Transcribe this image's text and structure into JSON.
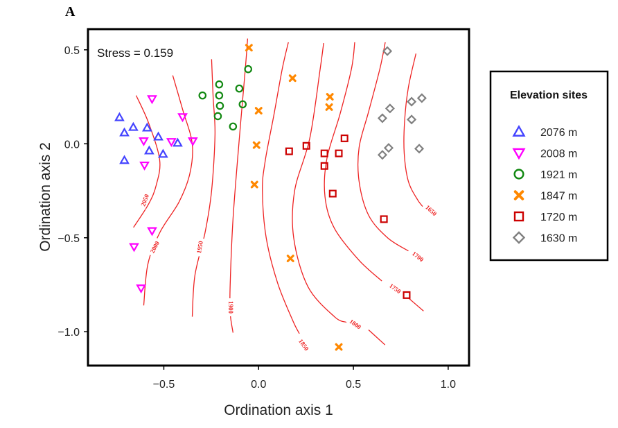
{
  "chart_data": {
    "type": "scatter",
    "panel_label": "A",
    "title": "",
    "annotation": "Stress = 0.159",
    "xlabel": "Ordination axis 1",
    "ylabel": "Ordination axis 2",
    "xlim": [
      -0.9,
      1.11
    ],
    "ylim": [
      -1.18,
      0.61
    ],
    "xticks": [
      -0.5,
      0.0,
      0.5,
      1.0
    ],
    "xtick_labels": [
      "−0.5",
      "0.0",
      "0.5",
      "1.0"
    ],
    "yticks": [
      0.5,
      0.0,
      -0.5,
      -1.0
    ],
    "ytick_labels": [
      "0.5",
      "0.0",
      "−0.5",
      "−1.0"
    ],
    "grid": false,
    "legend": {
      "title": "Elevation sites",
      "placement": "right"
    },
    "series": [
      {
        "name": "2076 m",
        "marker": "triangle-up",
        "color": "#4444ff",
        "points": [
          [
            -0.734,
            0.14
          ],
          [
            -0.661,
            0.088
          ],
          [
            -0.708,
            0.059
          ],
          [
            -0.588,
            0.085
          ],
          [
            -0.529,
            0.037
          ],
          [
            -0.427,
            0.004
          ],
          [
            -0.577,
            -0.037
          ],
          [
            -0.504,
            -0.055
          ],
          [
            -0.708,
            -0.088
          ]
        ]
      },
      {
        "name": "2008 m",
        "marker": "triangle-down",
        "color": "#ff00ff",
        "points": [
          [
            -0.562,
            0.239
          ],
          [
            -0.401,
            0.143
          ],
          [
            -0.606,
            0.015
          ],
          [
            -0.46,
            0.011
          ],
          [
            -0.347,
            0.015
          ],
          [
            -0.602,
            -0.114
          ],
          [
            -0.562,
            -0.463
          ],
          [
            -0.657,
            -0.548
          ],
          [
            -0.62,
            -0.768
          ]
        ]
      },
      {
        "name": "1921 m",
        "marker": "circle",
        "color": "#118811",
        "points": [
          [
            -0.296,
            0.257
          ],
          [
            -0.208,
            0.316
          ],
          [
            -0.208,
            0.257
          ],
          [
            -0.204,
            0.202
          ],
          [
            -0.215,
            0.147
          ],
          [
            -0.102,
            0.294
          ],
          [
            -0.084,
            0.21
          ],
          [
            -0.055,
            0.397
          ],
          [
            -0.135,
            0.092
          ]
        ]
      },
      {
        "name": "1847 m",
        "marker": "cross",
        "color": "#ff8800",
        "points": [
          [
            -0.051,
            0.511
          ],
          [
            0.179,
            0.349
          ],
          [
            0.0,
            0.176
          ],
          [
            -0.011,
            -0.007
          ],
          [
            -0.022,
            -0.217
          ],
          [
            0.376,
            0.25
          ],
          [
            0.372,
            0.195
          ],
          [
            0.168,
            -0.61
          ],
          [
            0.423,
            -1.081
          ]
        ]
      },
      {
        "name": "1720 m",
        "marker": "square",
        "color": "#cc0000",
        "points": [
          [
            0.161,
            -0.04
          ],
          [
            0.252,
            -0.011
          ],
          [
            0.347,
            -0.051
          ],
          [
            0.423,
            -0.051
          ],
          [
            0.453,
            0.029
          ],
          [
            0.347,
            -0.118
          ],
          [
            0.391,
            -0.265
          ],
          [
            0.661,
            -0.401
          ],
          [
            0.781,
            -0.805
          ]
        ]
      },
      {
        "name": "1630 m",
        "marker": "diamond",
        "color": "#808080",
        "points": [
          [
            0.679,
            0.493
          ],
          [
            0.693,
            0.188
          ],
          [
            0.653,
            0.136
          ],
          [
            0.807,
            0.224
          ],
          [
            0.861,
            0.243
          ],
          [
            0.807,
            0.129
          ],
          [
            0.847,
            -0.026
          ],
          [
            0.686,
            -0.022
          ],
          [
            0.653,
            -0.059
          ]
        ]
      }
    ],
    "contours": {
      "color": "#ee2222",
      "lines": [
        {
          "level": "2050",
          "points": [
            [
              -0.646,
              0.257
            ],
            [
              -0.58,
              0.11
            ],
            [
              -0.522,
              -0.085
            ],
            [
              -0.54,
              -0.22
            ],
            [
              -0.58,
              -0.32
            ],
            [
              -0.66,
              -0.445
            ]
          ],
          "label_at": [
            -0.6,
            -0.3
          ],
          "label_angle": -70
        },
        {
          "level": "2000",
          "points": [
            [
              -0.453,
              0.364
            ],
            [
              -0.4,
              0.18
            ],
            [
              -0.35,
              0.0
            ],
            [
              -0.363,
              -0.16
            ],
            [
              -0.42,
              -0.31
            ],
            [
              -0.52,
              -0.47
            ],
            [
              -0.584,
              -0.64
            ],
            [
              -0.606,
              -0.86
            ]
          ],
          "label_at": [
            -0.548,
            -0.55
          ],
          "label_angle": -62
        },
        {
          "level": "1950",
          "points": [
            [
              -0.248,
              0.45
            ],
            [
              -0.24,
              0.25
            ],
            [
              -0.23,
              0.05
            ],
            [
              -0.248,
              -0.25
            ],
            [
              -0.282,
              -0.47
            ],
            [
              -0.336,
              -0.7
            ],
            [
              -0.35,
              -0.92
            ]
          ],
          "label_at": [
            -0.31,
            -0.55
          ],
          "label_angle": -80
        },
        {
          "level": "1900",
          "points": [
            [
              -0.058,
              0.56
            ],
            [
              -0.07,
              0.4
            ],
            [
              -0.102,
              0.025
            ],
            [
              -0.135,
              -0.4
            ],
            [
              -0.15,
              -0.75
            ],
            [
              -0.15,
              -0.9
            ],
            [
              -0.135,
              -1.005
            ]
          ],
          "label_at": [
            -0.147,
            -0.87
          ],
          "label_angle": 90
        },
        {
          "level": "1850",
          "points": [
            [
              0.157,
              0.54
            ],
            [
              0.125,
              0.4
            ],
            [
              0.08,
              0.15
            ],
            [
              0.035,
              -0.09
            ],
            [
              0.02,
              -0.25
            ],
            [
              0.04,
              -0.5
            ],
            [
              0.1,
              -0.74
            ],
            [
              0.18,
              -0.94
            ],
            [
              0.215,
              -1.01
            ]
          ],
          "label_at": [
            0.238,
            -1.07
          ],
          "label_angle": 55
        },
        {
          "level": "1800",
          "points": [
            [
              0.343,
              0.536
            ],
            [
              0.325,
              0.4
            ],
            [
              0.27,
              0.03
            ],
            [
              0.19,
              -0.25
            ],
            [
              0.185,
              -0.5
            ],
            [
              0.26,
              -0.76
            ],
            [
              0.4,
              -0.92
            ],
            [
              0.465,
              -0.95
            ]
          ],
          "label_at": [
            0.51,
            -0.96
          ],
          "label_angle": 35
        },
        {
          "level": "1800b",
          "points": [
            [
              0.58,
              -0.99
            ],
            [
              0.667,
              -1.07
            ]
          ],
          "label_at": null,
          "label_angle": 0
        },
        {
          "level": "1750",
          "points": [
            [
              0.507,
              0.54
            ],
            [
              0.49,
              0.4
            ],
            [
              0.43,
              0.16
            ],
            [
              0.36,
              -0.08
            ],
            [
              0.35,
              -0.28
            ],
            [
              0.4,
              -0.45
            ],
            [
              0.53,
              -0.62
            ],
            [
              0.65,
              -0.73
            ]
          ],
          "label_at": [
            0.72,
            -0.77
          ],
          "label_angle": 35
        },
        {
          "level": "1750b",
          "points": [
            [
              0.79,
              -0.82
            ],
            [
              0.87,
              -0.89
            ]
          ],
          "label_at": null,
          "label_angle": 0
        },
        {
          "level": "1700",
          "points": [
            [
              0.668,
              0.54
            ],
            [
              0.64,
              0.4
            ],
            [
              0.58,
              0.17
            ],
            [
              0.53,
              -0.02
            ],
            [
              0.53,
              -0.2
            ],
            [
              0.58,
              -0.38
            ],
            [
              0.68,
              -0.5
            ],
            [
              0.79,
              -0.57
            ]
          ],
          "label_at": [
            0.84,
            -0.6
          ],
          "label_angle": 38
        },
        {
          "level": "1650",
          "points": [
            [
              0.83,
              0.48
            ],
            [
              0.79,
              0.3
            ],
            [
              0.77,
              0.12
            ],
            [
              0.768,
              -0.05
            ],
            [
              0.79,
              -0.2
            ],
            [
              0.84,
              -0.3
            ],
            [
              0.88,
              -0.35
            ]
          ],
          "label_at": [
            0.91,
            -0.355
          ],
          "label_angle": 42
        }
      ]
    }
  }
}
